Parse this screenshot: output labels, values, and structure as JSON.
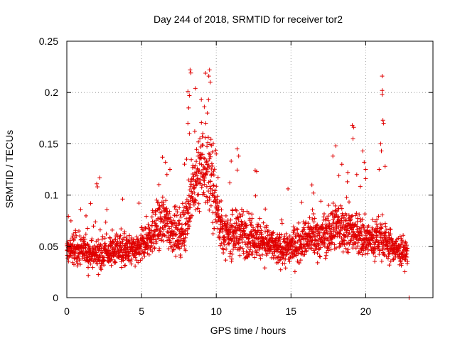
{
  "chart_data": {
    "type": "scatter",
    "title": "Day 244 of 2018, SRMTID for receiver tor2",
    "xlabel": "GPS time / hours",
    "ylabel": "SRMTID / TECUs",
    "xlim": [
      0,
      24.5
    ],
    "ylim": [
      0,
      0.25
    ],
    "x_ticks": [
      0,
      5,
      10,
      15,
      20
    ],
    "x_tick_labels": [
      "0",
      "5",
      "10",
      "15",
      "20"
    ],
    "y_ticks": [
      0,
      0.05,
      0.1,
      0.15,
      0.2,
      0.25
    ],
    "y_tick_labels": [
      "0",
      "0.05",
      "0.1",
      "0.15",
      "0.2",
      "0.25"
    ],
    "grid": true,
    "marker": "+",
    "color": "#e00000",
    "series": [
      {
        "name": "tor2",
        "envelope": [
          [
            0.0,
            0.045
          ],
          [
            0.5,
            0.048
          ],
          [
            1.0,
            0.046
          ],
          [
            1.5,
            0.044
          ],
          [
            2.0,
            0.042
          ],
          [
            2.5,
            0.043
          ],
          [
            3.0,
            0.045
          ],
          [
            3.5,
            0.047
          ],
          [
            4.0,
            0.046
          ],
          [
            4.5,
            0.045
          ],
          [
            5.0,
            0.05
          ],
          [
            5.5,
            0.06
          ],
          [
            6.0,
            0.07
          ],
          [
            6.5,
            0.075
          ],
          [
            7.0,
            0.068
          ],
          [
            7.5,
            0.06
          ],
          [
            8.0,
            0.075
          ],
          [
            8.5,
            0.11
          ],
          [
            9.0,
            0.13
          ],
          [
            9.5,
            0.125
          ],
          [
            10.0,
            0.09
          ],
          [
            10.5,
            0.06
          ],
          [
            11.0,
            0.06
          ],
          [
            11.5,
            0.065
          ],
          [
            12.0,
            0.06
          ],
          [
            12.5,
            0.058
          ],
          [
            13.0,
            0.056
          ],
          [
            13.5,
            0.052
          ],
          [
            14.0,
            0.048
          ],
          [
            14.5,
            0.046
          ],
          [
            15.0,
            0.05
          ],
          [
            15.5,
            0.053
          ],
          [
            16.0,
            0.058
          ],
          [
            16.5,
            0.06
          ],
          [
            17.0,
            0.058
          ],
          [
            17.5,
            0.062
          ],
          [
            18.0,
            0.07
          ],
          [
            18.5,
            0.066
          ],
          [
            19.0,
            0.064
          ],
          [
            19.5,
            0.06
          ],
          [
            20.0,
            0.058
          ],
          [
            20.5,
            0.055
          ],
          [
            21.0,
            0.06
          ],
          [
            21.5,
            0.052
          ],
          [
            22.0,
            0.048
          ],
          [
            22.5,
            0.045
          ],
          [
            22.8,
            0.042
          ]
        ],
        "spikes": [
          [
            8.25,
            0.222
          ],
          [
            8.3,
            0.219
          ],
          [
            8.1,
            0.201
          ],
          [
            8.2,
            0.197
          ],
          [
            8.15,
            0.185
          ],
          [
            8.1,
            0.17
          ],
          [
            8.2,
            0.16
          ],
          [
            8.6,
            0.204
          ],
          [
            9.0,
            0.193
          ],
          [
            9.2,
            0.186
          ],
          [
            9.4,
            0.18
          ],
          [
            9.5,
            0.216
          ],
          [
            9.55,
            0.222
          ],
          [
            9.6,
            0.21
          ],
          [
            9.3,
            0.17
          ],
          [
            8.9,
            0.155
          ],
          [
            9.1,
            0.16
          ],
          [
            9.8,
            0.15
          ],
          [
            10.0,
            0.14
          ],
          [
            19.1,
            0.168
          ],
          [
            19.2,
            0.166
          ],
          [
            19.15,
            0.155
          ],
          [
            21.1,
            0.216
          ],
          [
            21.1,
            0.202
          ],
          [
            21.1,
            0.198
          ],
          [
            21.15,
            0.173
          ],
          [
            21.2,
            0.17
          ],
          [
            21.0,
            0.15
          ],
          [
            21.05,
            0.143
          ],
          [
            2.0,
            0.111
          ],
          [
            2.2,
            0.117
          ],
          [
            2.05,
            0.108
          ],
          [
            6.4,
            0.137
          ],
          [
            6.6,
            0.132
          ],
          [
            6.9,
            0.125
          ],
          [
            6.7,
            0.12
          ],
          [
            11.4,
            0.145
          ],
          [
            11.5,
            0.138
          ],
          [
            11.0,
            0.133
          ],
          [
            12.6,
            0.124
          ],
          [
            12.7,
            0.123
          ],
          [
            14.8,
            0.106
          ],
          [
            16.5,
            0.102
          ],
          [
            16.4,
            0.11
          ],
          [
            18.0,
            0.148
          ],
          [
            17.8,
            0.138
          ],
          [
            18.4,
            0.13
          ],
          [
            18.8,
            0.122
          ],
          [
            18.2,
            0.119
          ],
          [
            19.4,
            0.12
          ],
          [
            19.8,
            0.143
          ],
          [
            19.9,
            0.132
          ],
          [
            20.0,
            0.125
          ],
          [
            20.0,
            0.116
          ],
          [
            20.9,
            0.125
          ],
          [
            21.3,
            0.128
          ]
        ],
        "min_point": [
          22.9,
          0.0
        ]
      }
    ]
  }
}
